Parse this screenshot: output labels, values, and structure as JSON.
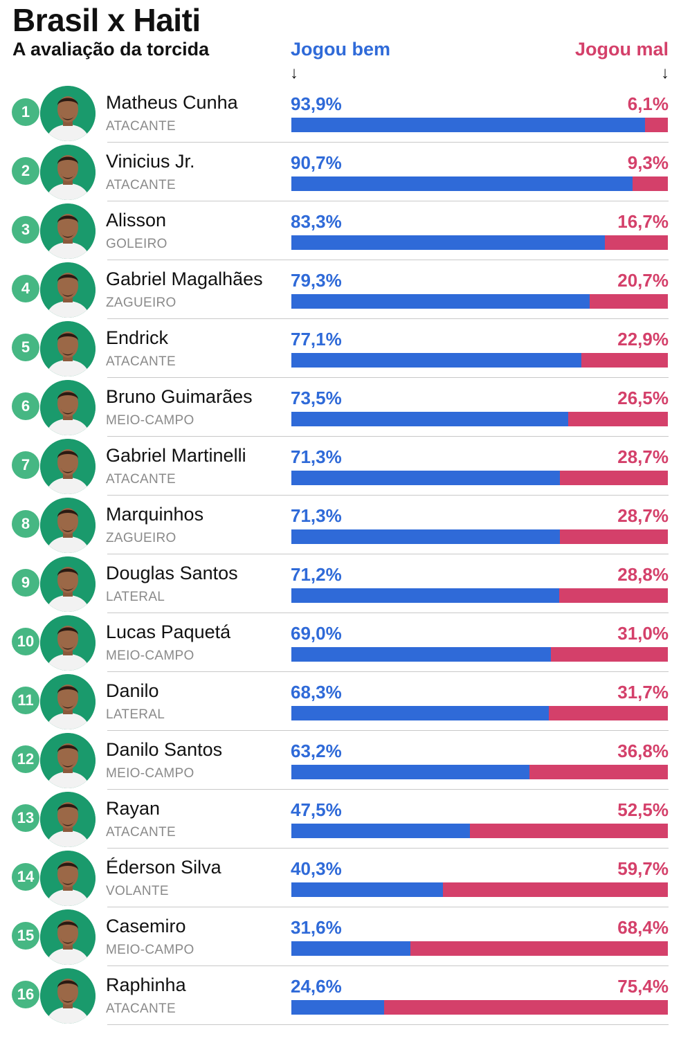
{
  "title": "Brasil x Haiti",
  "subtitle": "A avaliação da torcida",
  "legend": {
    "good": "Jogou bem",
    "bad": "Jogou mal",
    "arrow": "↓"
  },
  "colors": {
    "good": "#2f6ad8",
    "bad": "#d4406a",
    "rank_badge": "#46b783",
    "avatar_bg": "#1a9a6c"
  },
  "chart_data": {
    "type": "bar",
    "title": "Brasil x Haiti",
    "subtitle": "A avaliação da torcida",
    "series": [
      {
        "name": "Jogou bem",
        "values": [
          93.9,
          90.7,
          83.3,
          79.3,
          77.1,
          73.5,
          71.3,
          71.3,
          71.2,
          69.0,
          68.3,
          63.2,
          47.5,
          40.3,
          31.6,
          24.6
        ]
      },
      {
        "name": "Jogou mal",
        "values": [
          6.1,
          9.3,
          16.7,
          20.7,
          22.9,
          26.5,
          28.7,
          28.7,
          28.8,
          31.0,
          31.7,
          36.8,
          52.5,
          59.7,
          68.4,
          75.4
        ]
      }
    ],
    "categories": [
      "Matheus Cunha",
      "Vinicius Jr.",
      "Alisson",
      "Gabriel Magalhães",
      "Endrick",
      "Bruno Guimarães",
      "Gabriel Martinelli",
      "Marquinhos",
      "Douglas Santos",
      "Lucas Paquetá",
      "Danilo",
      "Danilo Santos",
      "Rayan",
      "Éderson Silva",
      "Casemiro",
      "Raphinha"
    ],
    "stacked": true,
    "xlim": [
      0,
      100
    ],
    "players": [
      {
        "rank": "1",
        "name": "Matheus Cunha",
        "position": "ATACANTE",
        "good": 93.9,
        "good_label": "93,9%",
        "bad": 6.1,
        "bad_label": "6,1%",
        "icon": "player-photo"
      },
      {
        "rank": "2",
        "name": "Vinicius Jr.",
        "position": "ATACANTE",
        "good": 90.7,
        "good_label": "90,7%",
        "bad": 9.3,
        "bad_label": "9,3%",
        "icon": "player-photo"
      },
      {
        "rank": "3",
        "name": "Alisson",
        "position": "GOLEIRO",
        "good": 83.3,
        "good_label": "83,3%",
        "bad": 16.7,
        "bad_label": "16,7%",
        "icon": "player-photo"
      },
      {
        "rank": "4",
        "name": "Gabriel Magalhães",
        "position": "ZAGUEIRO",
        "good": 79.3,
        "good_label": "79,3%",
        "bad": 20.7,
        "bad_label": "20,7%",
        "icon": "player-photo"
      },
      {
        "rank": "5",
        "name": "Endrick",
        "position": "ATACANTE",
        "good": 77.1,
        "good_label": "77,1%",
        "bad": 22.9,
        "bad_label": "22,9%",
        "icon": "player-photo"
      },
      {
        "rank": "6",
        "name": "Bruno Guimarães",
        "position": "MEIO-CAMPO",
        "good": 73.5,
        "good_label": "73,5%",
        "bad": 26.5,
        "bad_label": "26,5%",
        "icon": "player-photo"
      },
      {
        "rank": "7",
        "name": "Gabriel Martinelli",
        "position": "ATACANTE",
        "good": 71.3,
        "good_label": "71,3%",
        "bad": 28.7,
        "bad_label": "28,7%",
        "icon": "player-photo"
      },
      {
        "rank": "8",
        "name": "Marquinhos",
        "position": "ZAGUEIRO",
        "good": 71.3,
        "good_label": "71,3%",
        "bad": 28.7,
        "bad_label": "28,7%",
        "icon": "player-photo"
      },
      {
        "rank": "9",
        "name": "Douglas Santos",
        "position": "LATERAL",
        "good": 71.2,
        "good_label": "71,2%",
        "bad": 28.8,
        "bad_label": "28,8%",
        "icon": "player-photo"
      },
      {
        "rank": "10",
        "name": "Lucas Paquetá",
        "position": "MEIO-CAMPO",
        "good": 69.0,
        "good_label": "69,0%",
        "bad": 31.0,
        "bad_label": "31,0%",
        "icon": "player-photo"
      },
      {
        "rank": "11",
        "name": "Danilo",
        "position": "LATERAL",
        "good": 68.3,
        "good_label": "68,3%",
        "bad": 31.7,
        "bad_label": "31,7%",
        "icon": "player-photo"
      },
      {
        "rank": "12",
        "name": "Danilo Santos",
        "position": "MEIO-CAMPO",
        "good": 63.2,
        "good_label": "63,2%",
        "bad": 36.8,
        "bad_label": "36,8%",
        "icon": "player-photo"
      },
      {
        "rank": "13",
        "name": "Rayan",
        "position": "ATACANTE",
        "good": 47.5,
        "good_label": "47,5%",
        "bad": 52.5,
        "bad_label": "52,5%",
        "icon": "player-photo"
      },
      {
        "rank": "14",
        "name": "Éderson Silva",
        "position": "VOLANTE",
        "good": 40.3,
        "good_label": "40,3%",
        "bad": 59.7,
        "bad_label": "59,7%",
        "icon": "player-photo"
      },
      {
        "rank": "15",
        "name": "Casemiro",
        "position": "MEIO-CAMPO",
        "good": 31.6,
        "good_label": "31,6%",
        "bad": 68.4,
        "bad_label": "68,4%",
        "icon": "player-photo"
      },
      {
        "rank": "16",
        "name": "Raphinha",
        "position": "ATACANTE",
        "good": 24.6,
        "good_label": "24,6%",
        "bad": 75.4,
        "bad_label": "75,4%",
        "icon": "player-photo"
      }
    ]
  }
}
